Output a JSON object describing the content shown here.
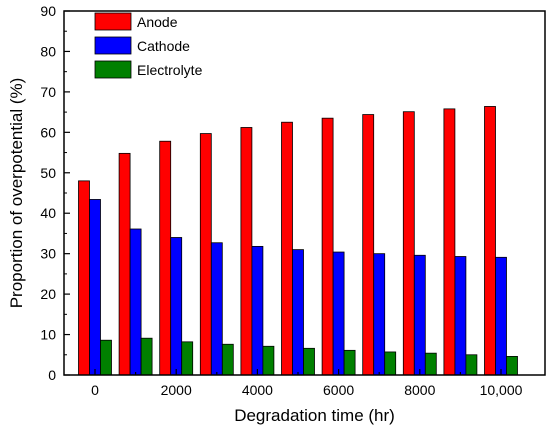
{
  "chart_data": {
    "type": "bar",
    "title": "",
    "xlabel": "Degradation time (hr)",
    "ylabel": "Proportion of overpotential (%)",
    "ylim": [
      0,
      90
    ],
    "yticks": [
      0,
      10,
      20,
      30,
      40,
      50,
      60,
      70,
      80,
      90
    ],
    "categories": [
      "0",
      "1000",
      "2000",
      "3000",
      "4000",
      "5000",
      "6000",
      "7000",
      "8000",
      "9000",
      "10,000"
    ],
    "xtick_labels": [
      {
        "category": "0",
        "label": "0"
      },
      {
        "category": "2000",
        "label": "2000"
      },
      {
        "category": "4000",
        "label": "4000"
      },
      {
        "category": "6000",
        "label": "6000"
      },
      {
        "category": "8000",
        "label": "8000"
      },
      {
        "category": "10,000",
        "label": "10,000"
      }
    ],
    "legend_position": "top-left",
    "grid": false,
    "series": [
      {
        "name": "Anode",
        "color": "#ff0000",
        "values": [
          48,
          54.8,
          57.8,
          59.7,
          61.2,
          62.5,
          63.5,
          64.4,
          65.1,
          65.8,
          66.4
        ]
      },
      {
        "name": "Cathode",
        "color": "#0000ff",
        "values": [
          43.4,
          36.1,
          34,
          32.7,
          31.8,
          31,
          30.4,
          30,
          29.6,
          29.3,
          29.1
        ]
      },
      {
        "name": "Electrolyte",
        "color": "#008000",
        "values": [
          8.6,
          9.1,
          8.2,
          7.6,
          7.1,
          6.6,
          6.1,
          5.7,
          5.4,
          5,
          4.6
        ]
      }
    ]
  }
}
